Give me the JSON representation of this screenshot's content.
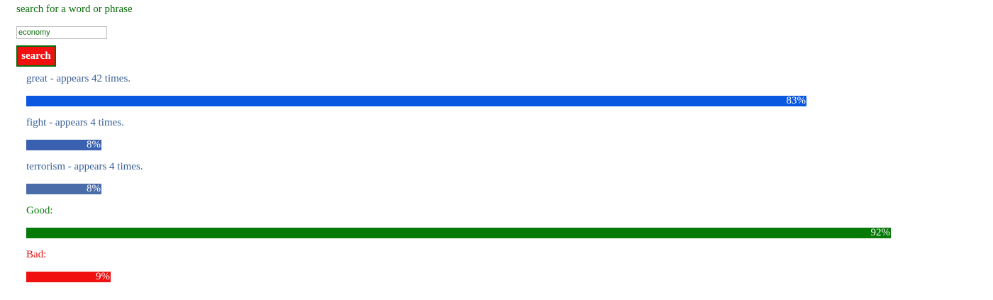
{
  "search": {
    "prompt": "search for a word or phrase",
    "input_value": "economy",
    "button_label": "search"
  },
  "results": [
    {
      "label": "great - appears 42 times.",
      "percent_label": "83%",
      "percent": 83,
      "color": "#0a57e0"
    },
    {
      "label": "fight - appears 4 times.",
      "percent_label": "8%",
      "percent": 8,
      "color": "#3a60b0"
    },
    {
      "label": "terrorism - appears 4 times.",
      "percent_label": "8%",
      "percent": 8,
      "color": "#4a6ca8"
    }
  ],
  "sentiment": {
    "good": {
      "label": "Good:",
      "percent_label": "92%",
      "percent": 92,
      "color": "#067a06"
    },
    "bad": {
      "label": "Bad:",
      "percent_label": "9%",
      "percent": 9,
      "color": "#f01010"
    }
  },
  "colors": {
    "prompt_text": "#0b6b0b",
    "button_bg": "#f01010",
    "button_border": "#0b6b0b"
  }
}
